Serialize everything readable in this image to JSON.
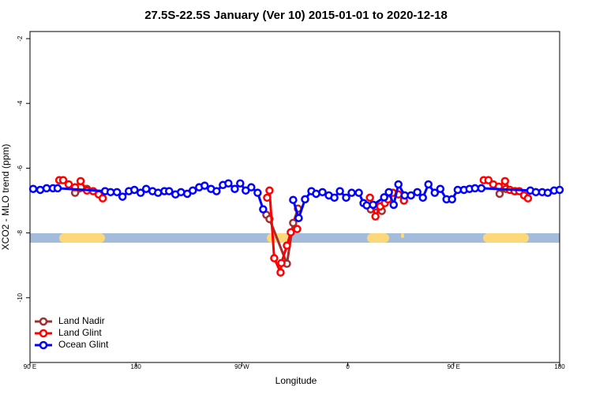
{
  "chart_data": {
    "type": "line",
    "title": "27.5S-22.5S January (Ver 10)   2015-01-01 to 2020-12-18",
    "x_label": "Longitude",
    "y_label": "XCO2 - MLO trend (ppm)",
    "xlim": [
      90,
      540
    ],
    "xticks": [
      {
        "value": 90,
        "label": "90 E"
      },
      180,
      {
        "value": 270,
        "label": "90 W"
      },
      {
        "value": 360,
        "label": "0"
      },
      {
        "value": 450,
        "label": "90 E"
      },
      {
        "value": 540,
        "label": "180"
      }
    ],
    "ylim": [
      -12,
      -1.78
    ],
    "yticks": [
      -10,
      -8,
      -6,
      -4,
      -2
    ],
    "legend": "bottom-left",
    "series": [
      {
        "name": "Land Nadir",
        "color": "#a03030",
        "x": [
          128.3,
          138.4,
          null,
          290.8,
          293.5,
          308.3,
          313.6,
          317.7,
          null,
          379.5,
          383.5,
          388.9,
          394.2,
          null,
          489,
          494.4,
          502.4
        ],
        "values": [
          -6.76,
          -6.64,
          null,
          -7.44,
          -7.57,
          -8.95,
          -7.69,
          -7.25,
          null,
          -7.27,
          -7.18,
          -7.32,
          -6.88,
          null,
          -6.79,
          -6.64,
          -6.71
        ]
      },
      {
        "name": "Land Glint",
        "color": "#ff0000",
        "x": [
          114.9,
          118.2,
          122.9,
          128.3,
          133,
          138.4,
          143.7,
          148.4,
          151.8,
          null,
          291.5,
          293.5,
          297.5,
          302.9,
          303.6,
          308.3,
          311.6,
          317,
          null,
          378.8,
          383.5,
          387.5,
          391.5,
          394.2,
          398.3,
          403,
          407.7,
          null,
          475.5,
          479.5,
          483.6,
          488.3,
          493.6,
          497.7,
          501.7,
          505.7,
          509.8,
          513.1
        ],
        "values": [
          -6.37,
          -6.37,
          -6.5,
          -6.59,
          -6.4,
          -6.69,
          -6.71,
          -6.81,
          -6.93,
          null,
          -6.91,
          -6.69,
          -8.78,
          -9.22,
          -8.93,
          -8.39,
          -7.98,
          -7.88,
          null,
          -6.91,
          -7.49,
          -7.18,
          -7.08,
          -6.96,
          -6.76,
          -6.81,
          -7.0,
          null,
          -6.37,
          -6.37,
          -6.5,
          -6.57,
          -6.4,
          -6.67,
          -6.71,
          -6.71,
          -6.84,
          -6.93
        ]
      },
      {
        "name": "Ocean Glint",
        "color": "#0000ff",
        "x": [
          92.7,
          98.7,
          104.1,
          109.5,
          113.5,
          153.8,
          158.5,
          163.9,
          168.6,
          174,
          178.7,
          184,
          188.7,
          194.1,
          198.8,
          204.2,
          208.2,
          213.6,
          218.3,
          223.6,
          228.3,
          233.7,
          238.4,
          243.8,
          248.5,
          253.9,
          258.6,
          264,
          268.6,
          273.3,
          278,
          283.4,
          288.1,
          null,
          313.6,
          318.3,
          323.7,
          329.1,
          333.1,
          338.5,
          343.9,
          348.6,
          353.3,
          358.6,
          363.3,
          369.4,
          373.4,
          376.1,
          381.5,
          390.9,
          394.9,
          399,
          403,
          408.4,
          413.7,
          419.1,
          423.8,
          428.5,
          433.9,
          438.6,
          443.9,
          448.6,
          453.4,
          458.7,
          463.4,
          468.1,
          473.5,
          515.1,
          519.8,
          525.2,
          529.9,
          535.3,
          540
        ],
        "values": [
          -6.64,
          -6.67,
          -6.62,
          -6.62,
          -6.62,
          -6.71,
          -6.74,
          -6.74,
          -6.88,
          -6.71,
          -6.67,
          -6.76,
          -6.64,
          -6.71,
          -6.76,
          -6.71,
          -6.71,
          -6.81,
          -6.74,
          -6.79,
          -6.69,
          -6.59,
          -6.54,
          -6.64,
          -6.71,
          -6.52,
          -6.47,
          -6.64,
          -6.47,
          -6.69,
          -6.59,
          -6.76,
          -7.27,
          null,
          -6.98,
          -7.54,
          -6.96,
          -6.71,
          -6.79,
          -6.74,
          -6.84,
          -6.91,
          -6.71,
          -6.91,
          -6.76,
          -6.76,
          -7.08,
          -7.15,
          -7.13,
          -6.9,
          -6.74,
          -7.13,
          -6.5,
          -6.84,
          -6.84,
          -6.74,
          -6.91,
          -6.5,
          -6.76,
          -6.64,
          -6.96,
          -6.96,
          -6.67,
          -6.67,
          -6.64,
          -6.62,
          -6.62,
          -6.69,
          -6.74,
          -6.74,
          -6.76,
          -6.69,
          -6.67
        ]
      }
    ]
  }
}
